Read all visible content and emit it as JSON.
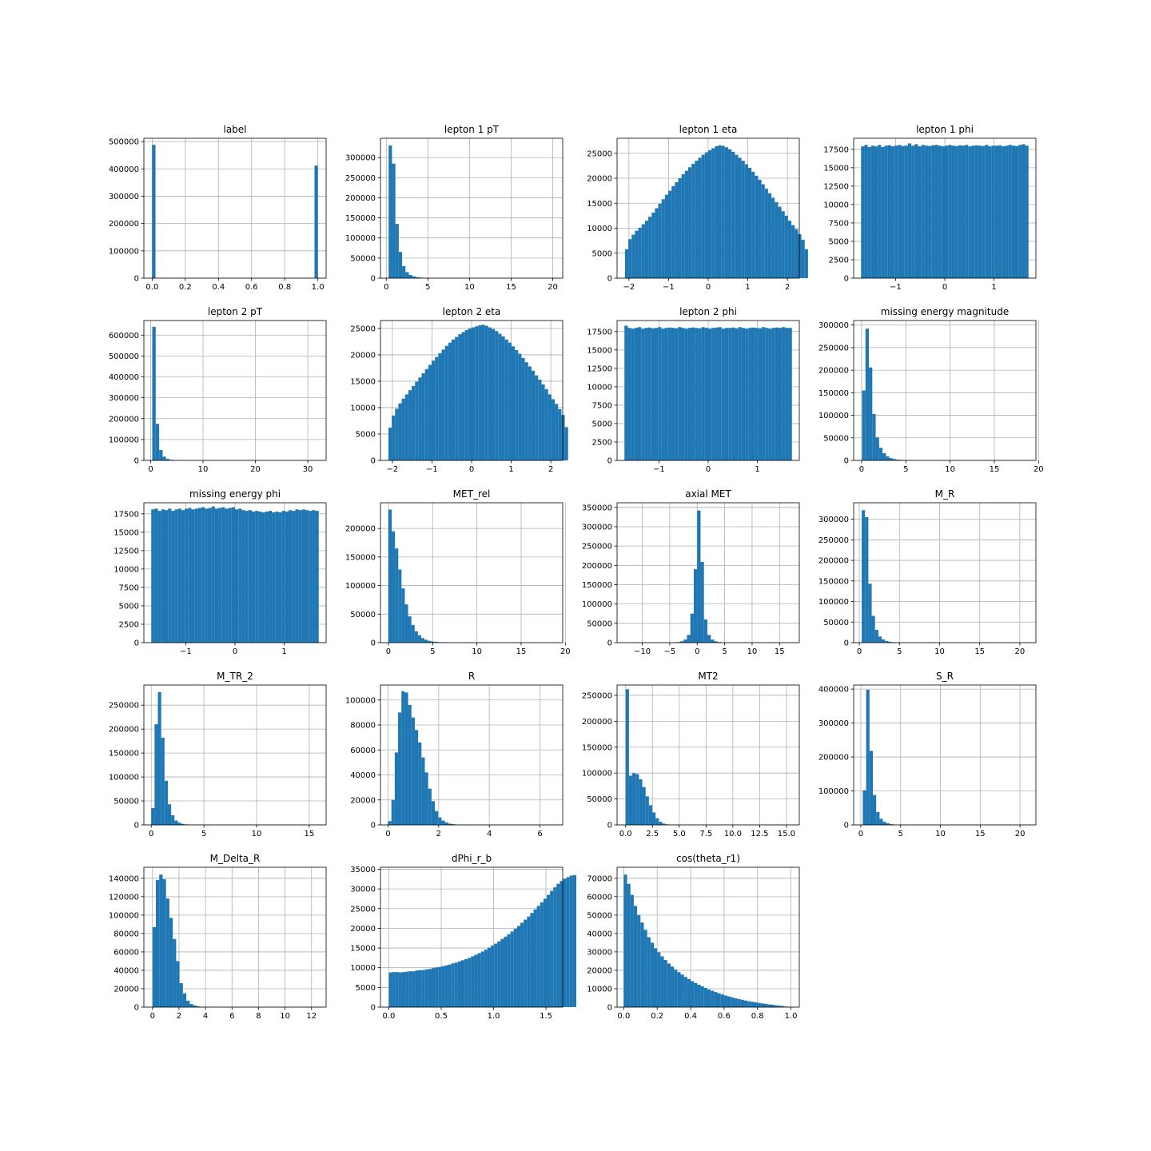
{
  "figure": {
    "background": "#ffffff",
    "bar_color": "#1f77b4",
    "grid_color": "#b0b0b0"
  },
  "chart_data": [
    {
      "type": "bar",
      "title": "label",
      "grid": true,
      "xlim": [
        -0.05,
        1.05
      ],
      "ylim": [
        0,
        512000
      ],
      "xticks": [
        0,
        0.2,
        0.4,
        0.6,
        0.8,
        1.0
      ],
      "xtick_labels": [
        "0.0",
        "0.2",
        "0.4",
        "0.6",
        "0.8",
        "1.0"
      ],
      "yticks": [
        0,
        100000,
        200000,
        300000,
        400000,
        500000
      ],
      "bin_start": 0,
      "bin_width": 0.02,
      "values": [
        488000,
        0,
        0,
        0,
        0,
        0,
        0,
        0,
        0,
        0,
        0,
        0,
        0,
        0,
        0,
        0,
        0,
        0,
        0,
        0,
        0,
        0,
        0,
        0,
        0,
        0,
        0,
        0,
        0,
        0,
        0,
        0,
        0,
        0,
        0,
        0,
        0,
        0,
        0,
        0,
        0,
        0,
        0,
        0,
        0,
        0,
        0,
        0,
        0,
        412000
      ]
    },
    {
      "type": "bar",
      "title": "lepton 1 pT",
      "grid": true,
      "xlim": [
        -0.7,
        21.2
      ],
      "ylim": [
        0,
        348000
      ],
      "xticks": [
        0,
        5,
        10,
        15,
        20
      ],
      "xtick_labels": [
        "0",
        "5",
        "10",
        "15",
        "20"
      ],
      "yticks": [
        0,
        50000,
        100000,
        150000,
        200000,
        250000,
        300000
      ],
      "bin_start": 0.28,
      "bin_width": 0.405,
      "values": [
        330000,
        285000,
        135000,
        65000,
        30000,
        15000,
        8000,
        4500,
        2500,
        1500,
        800,
        500,
        300,
        200,
        120,
        80,
        50,
        30,
        20,
        10
      ]
    },
    {
      "type": "bar",
      "title": "lepton 1 eta",
      "grid": true,
      "xlim": [
        -2.3,
        2.3
      ],
      "ylim": [
        0,
        28000
      ],
      "xticks": [
        -2,
        -1,
        0,
        1,
        2
      ],
      "xtick_labels": [
        "−2",
        "−1",
        "0",
        "1",
        "2"
      ],
      "yticks": [
        0,
        5000,
        10000,
        15000,
        20000,
        25000
      ],
      "bin_start": -2.1,
      "bin_width": 0.084,
      "values": [
        5800,
        7800,
        8700,
        9500,
        10100,
        10800,
        11500,
        12300,
        13100,
        14000,
        14900,
        15800,
        16700,
        17500,
        18400,
        19200,
        20000,
        20800,
        21500,
        22200,
        22900,
        23500,
        24100,
        24700,
        25200,
        25600,
        26000,
        26400,
        26600,
        26500,
        26200,
        25800,
        25300,
        24700,
        24100,
        23500,
        22800,
        22100,
        21300,
        20500,
        19700,
        18800,
        17900,
        17000,
        16100,
        15200,
        14300,
        13400,
        12500,
        11500,
        10600,
        9800,
        8800,
        7700,
        5800
      ]
    },
    {
      "type": "bar",
      "title": "lepton 1 phi",
      "grid": true,
      "xlim": [
        -1.85,
        1.85
      ],
      "ylim": [
        0,
        19000
      ],
      "xticks": [
        -1,
        0,
        1
      ],
      "xtick_labels": [
        "−1",
        "0",
        "1"
      ],
      "yticks": [
        0,
        2500,
        5000,
        7500,
        10000,
        12500,
        15000,
        17500
      ],
      "bin_start": -1.7,
      "bin_width": 0.068,
      "values": [
        17900,
        18100,
        17800,
        18000,
        17900,
        18100,
        17800,
        18000,
        18050,
        17900,
        18000,
        18100,
        17950,
        18000,
        18300,
        18000,
        18200,
        17900,
        18100,
        18000,
        17950,
        18050,
        18100,
        18000,
        17900,
        18000,
        18100,
        18000,
        17950,
        18050,
        18000,
        18100,
        17900,
        18000,
        18050,
        18000,
        17950,
        18100,
        17900,
        18000,
        18000,
        18050,
        17900,
        18000,
        18100,
        18000,
        17950,
        18100,
        18200,
        18000
      ]
    },
    {
      "type": "bar",
      "title": "lepton 2 pT",
      "grid": true,
      "xlim": [
        -1.3,
        33.5
      ],
      "ylim": [
        0,
        670000
      ],
      "xticks": [
        0,
        10,
        20,
        30
      ],
      "xtick_labels": [
        "0",
        "10",
        "20",
        "30"
      ],
      "yticks": [
        0,
        100000,
        200000,
        300000,
        400000,
        500000,
        600000
      ],
      "bin_start": 0.3,
      "bin_width": 0.66,
      "values": [
        640000,
        175000,
        50000,
        18000,
        7000,
        3000,
        1500,
        800,
        400,
        200,
        100,
        60,
        30,
        15,
        8
      ]
    },
    {
      "type": "bar",
      "title": "lepton 2 eta",
      "grid": true,
      "xlim": [
        -2.3,
        2.3
      ],
      "ylim": [
        0,
        26500
      ],
      "xticks": [
        -2,
        -1,
        0,
        1,
        2
      ],
      "xtick_labels": [
        "−2",
        "−1",
        "0",
        "1",
        "2"
      ],
      "yticks": [
        0,
        5000,
        10000,
        15000,
        20000,
        25000
      ],
      "bin_start": -2.1,
      "bin_width": 0.084,
      "values": [
        6200,
        8500,
        9800,
        10800,
        11700,
        12500,
        13300,
        14100,
        14900,
        15700,
        16500,
        17300,
        18100,
        18900,
        19600,
        20300,
        21000,
        21700,
        22300,
        22900,
        23400,
        23900,
        24300,
        24700,
        25000,
        25200,
        25400,
        25600,
        25700,
        25500,
        25200,
        24900,
        24500,
        24000,
        23500,
        22900,
        22300,
        21600,
        20900,
        20200,
        19400,
        18600,
        17800,
        17000,
        16100,
        15300,
        14400,
        13500,
        12500,
        11600,
        10700,
        9700,
        8600,
        6300
      ]
    },
    {
      "type": "bar",
      "title": "lepton 2 phi",
      "grid": true,
      "xlim": [
        -1.85,
        1.85
      ],
      "ylim": [
        0,
        19000
      ],
      "xticks": [
        -1,
        0,
        1
      ],
      "xtick_labels": [
        "−1",
        "0",
        "1"
      ],
      "yticks": [
        0,
        2500,
        5000,
        7500,
        10000,
        12500,
        15000,
        17500
      ],
      "bin_start": -1.7,
      "bin_width": 0.068,
      "values": [
        18300,
        18000,
        17900,
        18000,
        18100,
        17900,
        18000,
        18050,
        17950,
        18000,
        18100,
        17900,
        18000,
        18050,
        18000,
        17950,
        18100,
        18000,
        17900,
        18000,
        18050,
        18000,
        17950,
        18100,
        18000,
        17900,
        18000,
        18050,
        18100,
        17900,
        18000,
        18000,
        18050,
        17950,
        18100,
        18000,
        17900,
        18000,
        18050,
        18000,
        17950,
        18100,
        18000,
        17900,
        18000,
        18050,
        18000,
        18100,
        18000,
        18000
      ]
    },
    {
      "type": "bar",
      "title": "missing energy magnitude",
      "grid": true,
      "xlim": [
        -0.9,
        19.7
      ],
      "ylim": [
        0,
        310000
      ],
      "xticks": [
        0,
        5,
        10,
        15,
        20
      ],
      "xtick_labels": [
        "0",
        "5",
        "10",
        "15",
        "20"
      ],
      "yticks": [
        0,
        50000,
        100000,
        150000,
        200000,
        250000,
        300000
      ],
      "bin_start": 0.05,
      "bin_width": 0.385,
      "values": [
        155000,
        292000,
        206000,
        103000,
        51000,
        28000,
        16000,
        9000,
        5000,
        3000,
        1800,
        1100,
        700,
        400,
        250,
        150,
        100,
        60,
        40,
        20
      ]
    },
    {
      "type": "bar",
      "title": "missing energy phi",
      "grid": true,
      "xlim": [
        -1.85,
        1.85
      ],
      "ylim": [
        0,
        19000
      ],
      "xticks": [
        -1,
        0,
        1
      ],
      "xtick_labels": [
        "−1",
        "0",
        "1"
      ],
      "yticks": [
        0,
        2500,
        5000,
        7500,
        10000,
        12500,
        15000,
        17500
      ],
      "bin_start": -1.7,
      "bin_width": 0.068,
      "values": [
        18100,
        18200,
        17900,
        18100,
        18000,
        18200,
        17900,
        18100,
        18200,
        18000,
        18200,
        18300,
        18100,
        18200,
        18300,
        18400,
        18200,
        18300,
        18500,
        18200,
        18300,
        18400,
        18200,
        18300,
        18400,
        18100,
        18200,
        18000,
        17900,
        18000,
        17800,
        17900,
        17800,
        17700,
        17800,
        17900,
        17700,
        17800,
        17700,
        17900,
        17800,
        18000,
        17900,
        18100,
        18000,
        18100,
        18000,
        17900,
        18000,
        17900
      ]
    },
    {
      "type": "bar",
      "title": "MET_rel",
      "grid": true,
      "xlim": [
        -0.9,
        19.7
      ],
      "ylim": [
        0,
        245000
      ],
      "xticks": [
        0,
        5,
        10,
        15,
        20
      ],
      "xtick_labels": [
        "0",
        "5",
        "10",
        "15",
        "20"
      ],
      "yticks": [
        0,
        50000,
        100000,
        150000,
        200000
      ],
      "bin_start": 0,
      "bin_width": 0.37,
      "values": [
        233000,
        195000,
        165000,
        128000,
        95000,
        67000,
        46000,
        31000,
        20000,
        13000,
        8000,
        5000,
        3200,
        2000,
        1300,
        800,
        500,
        300,
        200,
        100
      ]
    },
    {
      "type": "bar",
      "title": "axial MET",
      "grid": true,
      "xlim": [
        -14.6,
        18.6
      ],
      "ylim": [
        0,
        362000
      ],
      "xticks": [
        -10,
        -5,
        0,
        5,
        10,
        15
      ],
      "xtick_labels": [
        "−10",
        "−5",
        "0",
        "5",
        "10",
        "15"
      ],
      "yticks": [
        0,
        50000,
        100000,
        150000,
        200000,
        250000,
        300000,
        350000
      ],
      "bin_start": -4.35,
      "bin_width": 0.62,
      "values": [
        500,
        1500,
        3500,
        8000,
        20000,
        75000,
        190000,
        342000,
        209000,
        60000,
        20000,
        8000,
        3500,
        1500,
        700,
        300,
        150,
        80
      ]
    },
    {
      "type": "bar",
      "title": "M_R",
      "grid": true,
      "xlim": [
        -0.7,
        22.0
      ],
      "ylim": [
        0,
        340000
      ],
      "xticks": [
        0,
        5,
        10,
        15,
        20
      ],
      "xtick_labels": [
        "0",
        "5",
        "10",
        "15",
        "20"
      ],
      "yticks": [
        0,
        50000,
        100000,
        150000,
        200000,
        250000,
        300000
      ],
      "bin_start": 0.3,
      "bin_width": 0.415,
      "values": [
        322000,
        305000,
        143000,
        65000,
        31000,
        15000,
        8000,
        4000,
        2200,
        1200,
        700,
        400,
        250,
        150,
        90,
        50,
        30,
        20
      ]
    },
    {
      "type": "bar",
      "title": "M_TR_2",
      "grid": true,
      "xlim": [
        -0.7,
        16.6
      ],
      "ylim": [
        0,
        292000
      ],
      "xticks": [
        0,
        5,
        10,
        15
      ],
      "xtick_labels": [
        "0",
        "5",
        "10",
        "15"
      ],
      "yticks": [
        0,
        50000,
        100000,
        150000,
        200000,
        250000
      ],
      "bin_start": 0,
      "bin_width": 0.315,
      "values": [
        35000,
        210000,
        277000,
        182000,
        92000,
        43000,
        20000,
        9000,
        4500,
        2200,
        1100,
        600,
        300,
        150,
        80,
        40,
        20
      ]
    },
    {
      "type": "bar",
      "title": "R",
      "grid": true,
      "xlim": [
        -0.3,
        6.9
      ],
      "ylim": [
        0,
        112000
      ],
      "xticks": [
        0,
        2,
        4,
        6
      ],
      "xtick_labels": [
        "0",
        "2",
        "4",
        "6"
      ],
      "yticks": [
        0,
        20000,
        40000,
        60000,
        80000,
        100000
      ],
      "bin_start": 0,
      "bin_width": 0.132,
      "values": [
        3000,
        20000,
        58000,
        90000,
        107000,
        106000,
        96000,
        86000,
        76000,
        66000,
        54000,
        42000,
        29000,
        19000,
        11000,
        6000,
        3500,
        2000,
        1000,
        600,
        300,
        150,
        80,
        40
      ]
    },
    {
      "type": "bar",
      "title": "MT2",
      "grid": true,
      "xlim": [
        -0.8,
        16.2
      ],
      "ylim": [
        0,
        270000
      ],
      "xticks": [
        0,
        2.5,
        5,
        7.5,
        10,
        12.5,
        15
      ],
      "xtick_labels": [
        "0.0",
        "2.5",
        "5.0",
        "7.5",
        "10.0",
        "12.5",
        "15.0"
      ],
      "yticks": [
        0,
        50000,
        100000,
        150000,
        200000,
        250000
      ],
      "bin_start": 0,
      "bin_width": 0.31,
      "values": [
        262000,
        95000,
        100000,
        98000,
        88000,
        73000,
        55000,
        38000,
        24000,
        13000,
        6000,
        2500,
        1000,
        400,
        150,
        60,
        25
      ]
    },
    {
      "type": "bar",
      "title": "S_R",
      "grid": true,
      "xlim": [
        -0.9,
        22.0
      ],
      "ylim": [
        0,
        412000
      ],
      "xticks": [
        0,
        5,
        10,
        15,
        20
      ],
      "xtick_labels": [
        "0",
        "5",
        "10",
        "15",
        "20"
      ],
      "yticks": [
        0,
        100000,
        200000,
        300000,
        400000
      ],
      "bin_start": 0.25,
      "bin_width": 0.42,
      "values": [
        102000,
        398000,
        218000,
        88000,
        38000,
        18000,
        9000,
        4500,
        2200,
        1100,
        600,
        300,
        150,
        80,
        40,
        20
      ]
    },
    {
      "type": "bar",
      "title": "M_Delta_R",
      "grid": true,
      "xlim": [
        -0.65,
        13.1
      ],
      "ylim": [
        0,
        152000
      ],
      "xticks": [
        0,
        2,
        4,
        6,
        8,
        10,
        12
      ],
      "xtick_labels": [
        "0",
        "2",
        "4",
        "6",
        "8",
        "10",
        "12"
      ],
      "yticks": [
        0,
        20000,
        40000,
        60000,
        80000,
        100000,
        120000,
        140000
      ],
      "bin_start": 0,
      "bin_width": 0.255,
      "values": [
        87000,
        138000,
        144000,
        139000,
        118000,
        97000,
        74000,
        50000,
        26000,
        15000,
        7000,
        3500,
        1800,
        900,
        450,
        200,
        100,
        50
      ]
    },
    {
      "type": "bar",
      "title": "dPhi_r_b",
      "grid": true,
      "xlim": [
        -0.08,
        1.66
      ],
      "ylim": [
        0,
        35500
      ],
      "xticks": [
        0,
        0.5,
        1.0,
        1.5
      ],
      "xtick_labels": [
        "0.0",
        "0.5",
        "1.0",
        "1.5"
      ],
      "yticks": [
        0,
        5000,
        10000,
        15000,
        20000,
        25000,
        30000,
        35000
      ],
      "bin_start": 0,
      "bin_width": 0.0314,
      "values": [
        8800,
        8900,
        8900,
        8800,
        8900,
        9000,
        9100,
        9100,
        9300,
        9400,
        9400,
        9600,
        9700,
        9900,
        10100,
        10200,
        10400,
        10600,
        10800,
        11100,
        11300,
        11600,
        11900,
        12200,
        12500,
        12900,
        13300,
        13700,
        14100,
        14600,
        15100,
        15600,
        16100,
        16700,
        17300,
        17900,
        18500,
        19200,
        19900,
        20600,
        21400,
        22200,
        23000,
        23900,
        24800,
        25700,
        26600,
        27500,
        28500,
        29500,
        30400,
        31300,
        32000,
        32600,
        33000,
        33400,
        33500
      ]
    },
    {
      "type": "bar",
      "title": "cos(theta_r1)",
      "grid": true,
      "xlim": [
        -0.04,
        1.05
      ],
      "ylim": [
        0,
        76000
      ],
      "xticks": [
        0,
        0.2,
        0.4,
        0.6,
        0.8,
        1.0
      ],
      "xtick_labels": [
        "0.0",
        "0.2",
        "0.4",
        "0.6",
        "0.8",
        "1.0"
      ],
      "yticks": [
        0,
        10000,
        20000,
        30000,
        40000,
        50000,
        60000,
        70000
      ],
      "bin_start": 0,
      "bin_width": 0.02,
      "values": [
        72000,
        67000,
        61000,
        55000,
        50000,
        46000,
        42000,
        38000,
        35000,
        32000,
        29800,
        27600,
        25600,
        23700,
        22000,
        20400,
        19000,
        17700,
        16400,
        15200,
        14100,
        13100,
        12200,
        11300,
        10400,
        9600,
        8900,
        8200,
        7500,
        6900,
        6300,
        5800,
        5300,
        4800,
        4400,
        4000,
        3600,
        3200,
        2900,
        2600,
        2300,
        2000,
        1800,
        1500,
        1300,
        1000,
        800,
        600,
        350,
        150
      ]
    }
  ]
}
